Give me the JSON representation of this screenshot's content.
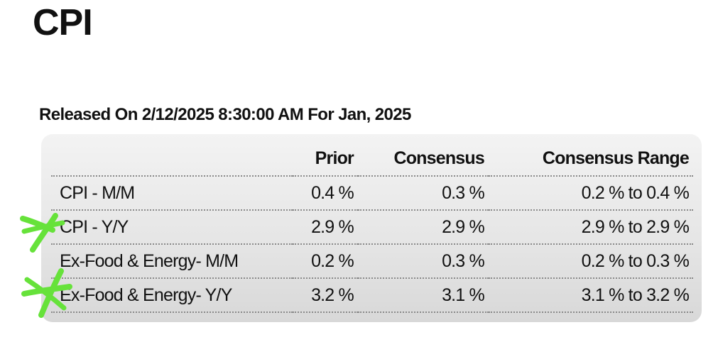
{
  "title": "CPI",
  "release": {
    "text": "Released On 2/12/2025 8:30:00 AM For Jan, 2025"
  },
  "table": {
    "headers": [
      "",
      "Prior",
      "Consensus",
      "Consensus Range"
    ],
    "rows": [
      {
        "metric": "CPI - M/M",
        "prior": "0.4 %",
        "consensus": "0.3 %",
        "range": "0.2 % to 0.4 %"
      },
      {
        "metric": "CPI - Y/Y",
        "prior": "2.9 %",
        "consensus": "2.9 %",
        "range": "2.9 % to 2.9 %"
      },
      {
        "metric": "Ex-Food & Energy- M/M",
        "prior": "0.2 %",
        "consensus": "0.3 %",
        "range": "0.2 % to 0.3 %"
      },
      {
        "metric": "Ex-Food & Energy- Y/Y",
        "prior": "3.2 %",
        "consensus": "3.1 %",
        "range": "3.1 % to 3.2 %"
      }
    ]
  },
  "annotations": {
    "color": "#66e23a",
    "marks": [
      "hand-drawn-x-mark",
      "hand-drawn-x-mark"
    ]
  }
}
